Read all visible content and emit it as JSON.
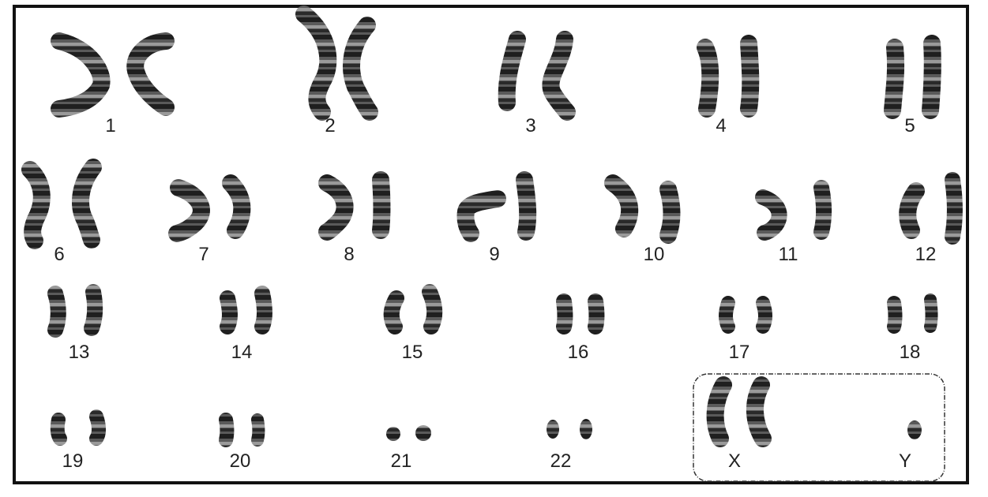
{
  "figure": {
    "pairs": [
      {
        "label": "1"
      },
      {
        "label": "2"
      },
      {
        "label": "3"
      },
      {
        "label": "4"
      },
      {
        "label": "5"
      },
      {
        "label": "6"
      },
      {
        "label": "7"
      },
      {
        "label": "8"
      },
      {
        "label": "9"
      },
      {
        "label": "10"
      },
      {
        "label": "11"
      },
      {
        "label": "12"
      },
      {
        "label": "13"
      },
      {
        "label": "14"
      },
      {
        "label": "15"
      },
      {
        "label": "16"
      },
      {
        "label": "17"
      },
      {
        "label": "18"
      },
      {
        "label": "19"
      },
      {
        "label": "20"
      },
      {
        "label": "21"
      },
      {
        "label": "22"
      }
    ],
    "sex_chromosomes": [
      {
        "label": "X"
      },
      {
        "label": "Y"
      }
    ],
    "colors": {
      "chromatin_dark": "#1f1f1f",
      "chromatin_mid": "#5a5a5a",
      "chromatin_light": "#9a9a9a",
      "frame": "#111111",
      "background": "#ffffff"
    }
  }
}
